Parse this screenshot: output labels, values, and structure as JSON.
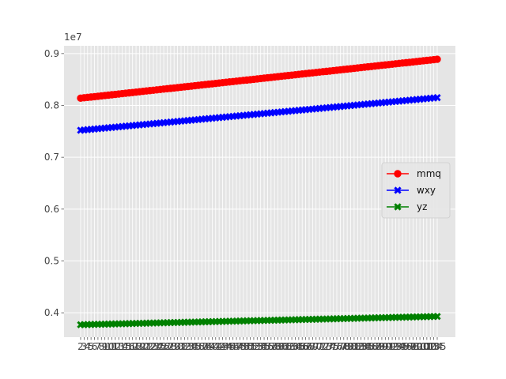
{
  "chart_data": {
    "type": "line",
    "title": "",
    "xlabel": "",
    "ylabel": "",
    "y_offset_label": "1e7",
    "ylim": [
      0.353,
      0.915
    ],
    "y_ticks": [
      0.4,
      0.5,
      0.6,
      0.7,
      0.8,
      0.9
    ],
    "y_tick_labels": [
      "0.4",
      "0.5",
      "0.6",
      "0.7",
      "0.8",
      "0.9"
    ],
    "grid": true,
    "legend_position": "center-right",
    "categories": [
      "2",
      "3",
      "4",
      "5",
      "6",
      "7",
      "8",
      "9",
      "10",
      "11",
      "12",
      "13",
      "14",
      "15",
      "16",
      "17",
      "18",
      "19",
      "20",
      "21",
      "22",
      "23",
      "24",
      "25",
      "26",
      "27",
      "28",
      "29",
      "30",
      "31",
      "32",
      "33",
      "34",
      "35",
      "36",
      "37",
      "38",
      "39",
      "40",
      "41",
      "42",
      "43",
      "44",
      "45",
      "46",
      "47",
      "48",
      "49",
      "50",
      "51",
      "52",
      "53",
      "54",
      "55",
      "56",
      "57",
      "58",
      "59",
      "60",
      "61",
      "62",
      "63",
      "64",
      "65",
      "66",
      "67",
      "68",
      "69",
      "70",
      "71",
      "72",
      "73",
      "74",
      "75",
      "76",
      "77",
      "78",
      "79",
      "80",
      "81",
      "82",
      "83",
      "84",
      "85",
      "86",
      "87",
      "88",
      "89",
      "90",
      "91",
      "92",
      "93",
      "94",
      "95",
      "96",
      "97",
      "98",
      "99",
      "100",
      "101",
      "102",
      "103",
      "104",
      "105"
    ],
    "series": [
      {
        "name": "mmq",
        "color": "#ff0000",
        "marker": "circle",
        "start": 0.814,
        "end": 0.889
      },
      {
        "name": "wxy",
        "color": "#0000ff",
        "marker": "x",
        "start": 0.752,
        "end": 0.815
      },
      {
        "name": "yz",
        "color": "#008000",
        "marker": "x",
        "start": 0.377,
        "end": 0.393
      }
    ]
  }
}
